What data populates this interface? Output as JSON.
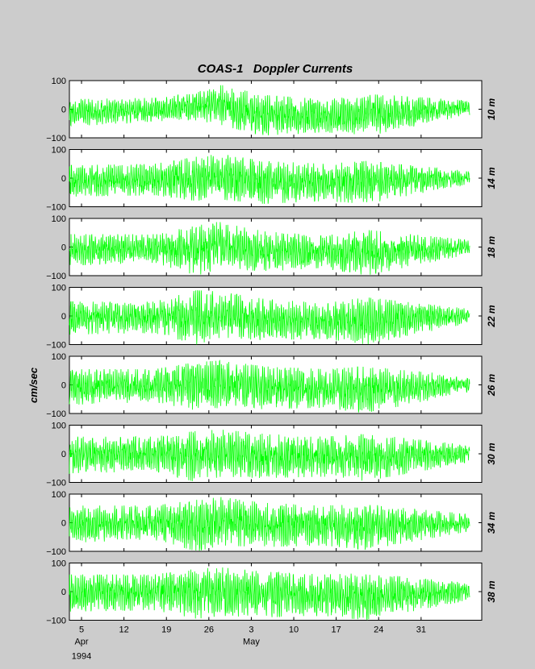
{
  "chart_data": {
    "type": "line",
    "title": "COAS-1   Doppler Currents",
    "ylabel": "cm/sec",
    "ylim": [
      -100,
      100
    ],
    "ytick_labels": [
      "100",
      "0",
      "−100"
    ],
    "xlim": [
      "1994-04-03",
      "1994-06-10"
    ],
    "xtick_labels": [
      {
        "day": "5",
        "month": "Apr",
        "year": "1994"
      },
      {
        "day": "12",
        "month": "",
        "year": ""
      },
      {
        "day": "19",
        "month": "",
        "year": ""
      },
      {
        "day": "26",
        "month": "",
        "year": ""
      },
      {
        "day": "3",
        "month": "May",
        "year": ""
      },
      {
        "day": "10",
        "month": "",
        "year": ""
      },
      {
        "day": "17",
        "month": "",
        "year": ""
      },
      {
        "day": "24",
        "month": "",
        "year": ""
      },
      {
        "day": "31",
        "month": "",
        "year": ""
      }
    ],
    "xtick_dates": [
      "1994-04-05",
      "1994-04-12",
      "1994-04-19",
      "1994-04-26",
      "1994-05-03",
      "1994-05-10",
      "1994-05-17",
      "1994-05-24",
      "1994-05-31"
    ],
    "series_color": "#00ff00",
    "grid": false,
    "panels": [
      {
        "label": "10 m",
        "envelope": {
          "dates": [
            "1994-04-03",
            "1994-04-17",
            "1994-04-24",
            "1994-04-28",
            "1994-05-05",
            "1994-05-15",
            "1994-05-22",
            "1994-06-08"
          ],
          "max": [
            35,
            40,
            60,
            85,
            50,
            35,
            55,
            30
          ],
          "min": [
            -60,
            -45,
            -40,
            -55,
            -95,
            -80,
            -95,
            -20
          ]
        }
      },
      {
        "label": "14 m",
        "envelope": {
          "dates": [
            "1994-04-03",
            "1994-04-17",
            "1994-04-24",
            "1994-04-28",
            "1994-05-05",
            "1994-05-15",
            "1994-05-22",
            "1994-06-08"
          ],
          "max": [
            45,
            50,
            75,
            85,
            60,
            50,
            60,
            25
          ],
          "min": [
            -65,
            -60,
            -80,
            -75,
            -90,
            -80,
            -90,
            -20
          ]
        }
      },
      {
        "label": "18 m",
        "envelope": {
          "dates": [
            "1994-04-03",
            "1994-04-17",
            "1994-04-24",
            "1994-04-28",
            "1994-05-05",
            "1994-05-15",
            "1994-05-22",
            "1994-06-08"
          ],
          "max": [
            45,
            45,
            75,
            90,
            55,
            40,
            60,
            25
          ],
          "min": [
            -65,
            -55,
            -100,
            -75,
            -85,
            -75,
            -100,
            -25
          ]
        }
      },
      {
        "label": "22 m",
        "envelope": {
          "dates": [
            "1994-04-03",
            "1994-04-17",
            "1994-04-24",
            "1994-04-28",
            "1994-05-05",
            "1994-05-15",
            "1994-05-22",
            "1994-06-08"
          ],
          "max": [
            50,
            50,
            90,
            85,
            60,
            45,
            65,
            25
          ],
          "min": [
            -65,
            -60,
            -100,
            -75,
            -85,
            -80,
            -100,
            -25
          ]
        }
      },
      {
        "label": "26 m",
        "envelope": {
          "dates": [
            "1994-04-03",
            "1994-04-17",
            "1994-04-24",
            "1994-04-28",
            "1994-05-05",
            "1994-05-15",
            "1994-05-22",
            "1994-06-08"
          ],
          "max": [
            55,
            55,
            80,
            85,
            65,
            55,
            65,
            30
          ],
          "min": [
            -70,
            -60,
            -90,
            -80,
            -85,
            -80,
            -100,
            -25
          ]
        }
      },
      {
        "label": "30 m",
        "envelope": {
          "dates": [
            "1994-04-03",
            "1994-04-17",
            "1994-04-24",
            "1994-04-28",
            "1994-05-05",
            "1994-05-15",
            "1994-05-22",
            "1994-06-08"
          ],
          "max": [
            60,
            60,
            80,
            85,
            70,
            60,
            70,
            30
          ],
          "min": [
            -70,
            -60,
            -100,
            -80,
            -85,
            -80,
            -95,
            -30
          ]
        }
      },
      {
        "label": "34 m",
        "envelope": {
          "dates": [
            "1994-04-03",
            "1994-04-17",
            "1994-04-24",
            "1994-04-28",
            "1994-05-05",
            "1994-05-15",
            "1994-05-22",
            "1994-06-08"
          ],
          "max": [
            60,
            60,
            80,
            90,
            70,
            60,
            65,
            30
          ],
          "min": [
            -70,
            -60,
            -100,
            -80,
            -85,
            -80,
            -95,
            -30
          ]
        }
      },
      {
        "label": "38 m",
        "envelope": {
          "dates": [
            "1994-04-03",
            "1994-04-17",
            "1994-04-24",
            "1994-04-28",
            "1994-05-05",
            "1994-05-15",
            "1994-05-22",
            "1994-06-08"
          ],
          "max": [
            60,
            60,
            80,
            85,
            70,
            60,
            65,
            30
          ],
          "min": [
            -70,
            -65,
            -95,
            -85,
            -90,
            -85,
            -100,
            -30
          ]
        }
      }
    ]
  }
}
